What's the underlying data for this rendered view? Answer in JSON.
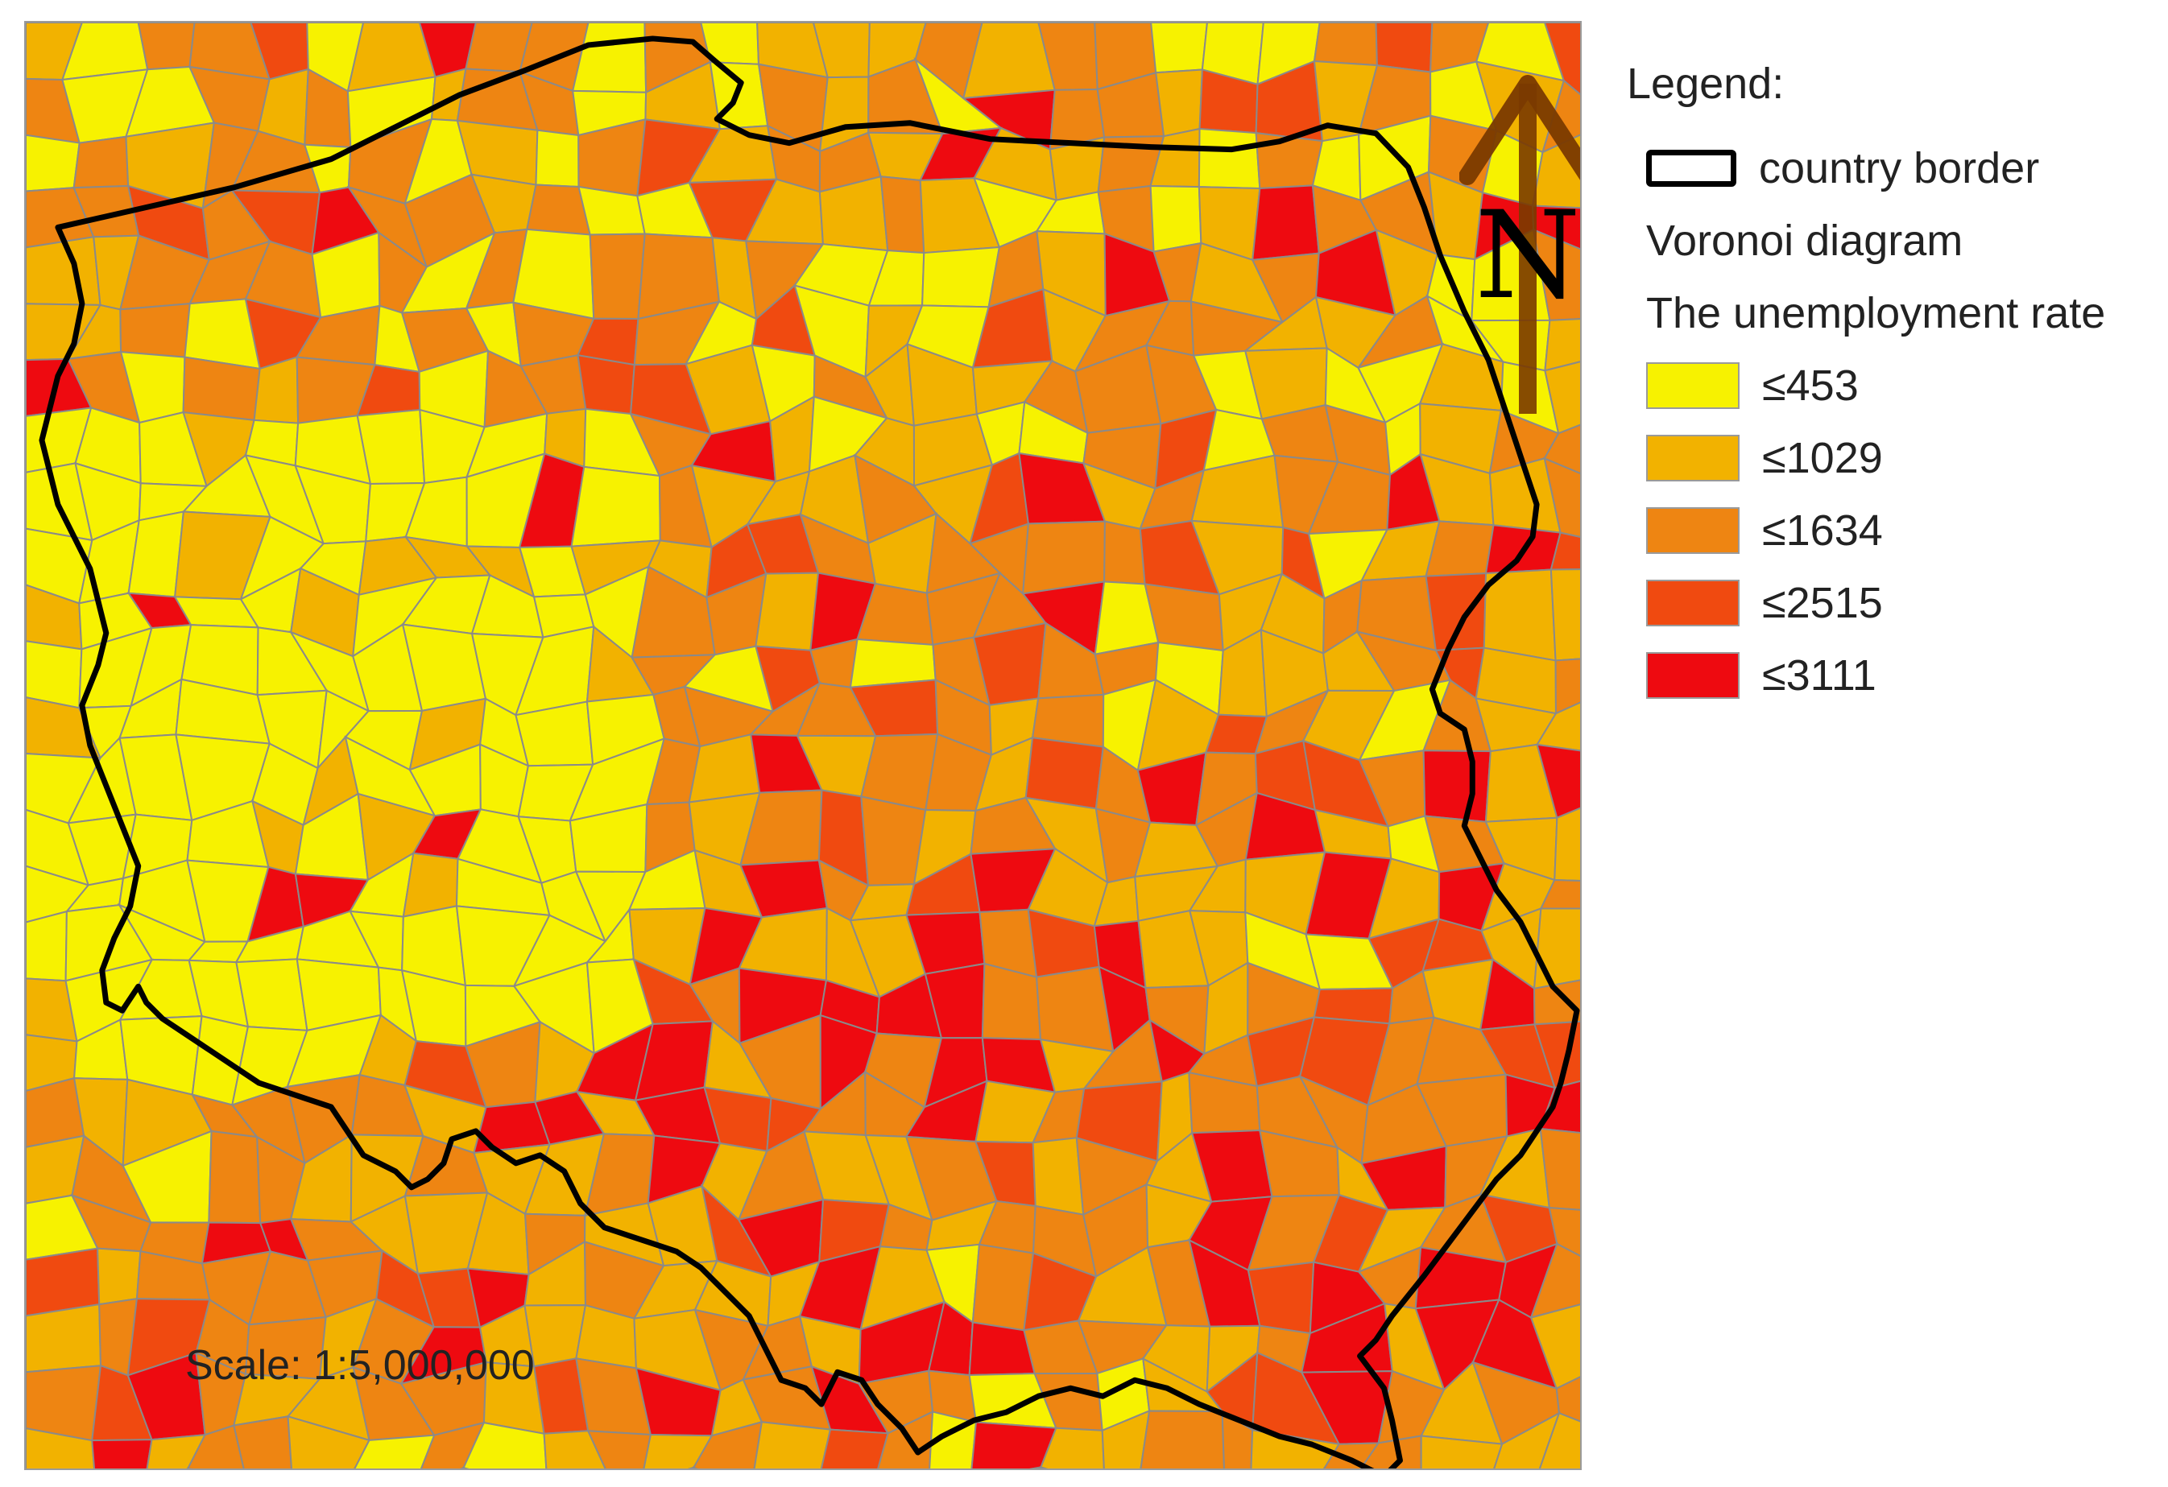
{
  "legend": {
    "title": "Legend:",
    "border_label": "country border",
    "voronoi_label": "Voronoi diagram",
    "rate_title": "The unemployment rate",
    "classes": [
      {
        "label": "≤453",
        "color": "#f7f200"
      },
      {
        "label": "≤1029",
        "color": "#f2b200"
      },
      {
        "label": "≤1634",
        "color": "#ee8512"
      },
      {
        "label": "≤2515",
        "color": "#f04a10"
      },
      {
        "label": "≤3111",
        "color": "#ee0a10"
      }
    ]
  },
  "north_arrow": {
    "label": "N",
    "color": "#7a3a00"
  },
  "scale": {
    "label": "Scale: 1:5,000,000"
  },
  "map": {
    "cell_border_color": "#8a8a8a",
    "country_border_color": "#000000"
  }
}
